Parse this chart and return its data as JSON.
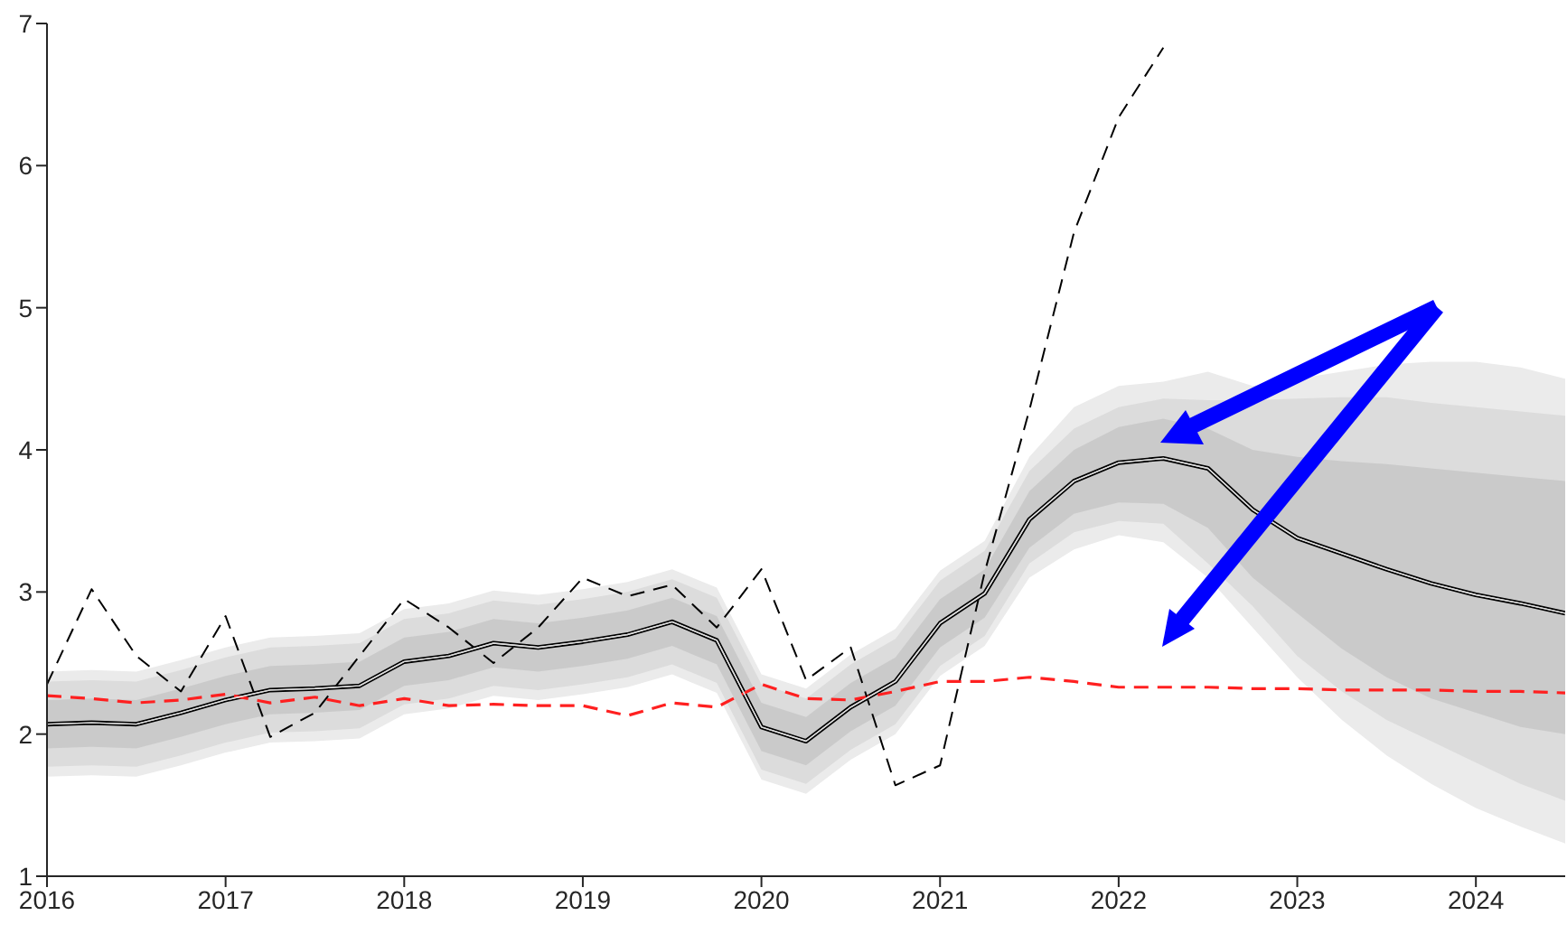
{
  "chart_data": {
    "type": "line",
    "x": [
      2016,
      2016.25,
      2016.5,
      2016.75,
      2017,
      2017.25,
      2017.5,
      2017.75,
      2018,
      2018.25,
      2018.5,
      2018.75,
      2019,
      2019.25,
      2019.5,
      2019.75,
      2020,
      2020.25,
      2020.5,
      2020.75,
      2021,
      2021.25,
      2021.5,
      2021.75,
      2022,
      2022.25,
      2022.5,
      2022.75,
      2023,
      2023.25,
      2023.5,
      2023.75,
      2024,
      2024.25,
      2024.5
    ],
    "series": [
      {
        "color": "#ebebeb",
        "line_style": "solid",
        "values": [
          2.07,
          2.08,
          2.07,
          2.15,
          2.24,
          2.31,
          2.32,
          2.34,
          2.51,
          2.55,
          2.64,
          2.61,
          2.65,
          2.7,
          2.79,
          2.66,
          2.05,
          1.95,
          2.19,
          2.37,
          2.78,
          2.99,
          3.51,
          3.78,
          3.91,
          3.94,
          3.87,
          3.58,
          3.38,
          3.27,
          3.16,
          3.06,
          2.98,
          2.92,
          2.85
        ],
        "upper": [
          2.44,
          2.45,
          2.44,
          2.52,
          2.61,
          2.68,
          2.69,
          2.71,
          2.88,
          2.92,
          3.01,
          2.98,
          3.02,
          3.07,
          3.16,
          3.03,
          2.42,
          2.32,
          2.56,
          2.74,
          3.15,
          3.36,
          3.95,
          4.3,
          4.45,
          4.48,
          4.55,
          4.45,
          4.5,
          4.55,
          4.6,
          4.62,
          4.62,
          4.58,
          4.5
        ],
        "lower": [
          1.7,
          1.71,
          1.7,
          1.78,
          1.87,
          1.94,
          1.95,
          1.97,
          2.14,
          2.18,
          2.27,
          2.24,
          2.28,
          2.33,
          2.42,
          2.29,
          1.68,
          1.58,
          1.82,
          2.0,
          2.41,
          2.62,
          3.1,
          3.3,
          3.4,
          3.35,
          3.1,
          2.75,
          2.4,
          2.1,
          1.85,
          1.65,
          1.48,
          1.35,
          1.23
        ]
      },
      {
        "color": "#dcdcdc",
        "line_style": "solid",
        "values": [
          2.07,
          2.08,
          2.07,
          2.15,
          2.24,
          2.31,
          2.32,
          2.34,
          2.51,
          2.55,
          2.64,
          2.61,
          2.65,
          2.7,
          2.79,
          2.66,
          2.05,
          1.95,
          2.19,
          2.37,
          2.78,
          2.99,
          3.51,
          3.78,
          3.91,
          3.94,
          3.87,
          3.58,
          3.38,
          3.27,
          3.16,
          3.06,
          2.98,
          2.92,
          2.85
        ],
        "upper": [
          2.37,
          2.38,
          2.37,
          2.45,
          2.54,
          2.61,
          2.62,
          2.64,
          2.81,
          2.85,
          2.94,
          2.91,
          2.95,
          3.0,
          3.09,
          2.96,
          2.35,
          2.25,
          2.49,
          2.67,
          3.08,
          3.29,
          3.85,
          4.15,
          4.3,
          4.36,
          4.35,
          4.35,
          4.36,
          4.37,
          4.37,
          4.33,
          4.3,
          4.27,
          4.24
        ],
        "lower": [
          1.77,
          1.78,
          1.77,
          1.85,
          1.94,
          2.01,
          2.02,
          2.04,
          2.21,
          2.25,
          2.34,
          2.31,
          2.35,
          2.4,
          2.49,
          2.36,
          1.75,
          1.65,
          1.89,
          2.07,
          2.48,
          2.69,
          3.2,
          3.42,
          3.5,
          3.48,
          3.2,
          2.9,
          2.55,
          2.3,
          2.1,
          1.95,
          1.8,
          1.65,
          1.53
        ]
      },
      {
        "color": "#000000",
        "line_style": "solid",
        "values": [
          2.07,
          2.08,
          2.07,
          2.15,
          2.24,
          2.31,
          2.32,
          2.34,
          2.51,
          2.55,
          2.64,
          2.61,
          2.65,
          2.7,
          2.79,
          2.66,
          2.05,
          1.95,
          2.19,
          2.37,
          2.78,
          2.99,
          3.51,
          3.78,
          3.91,
          3.94,
          3.87,
          3.58,
          3.38,
          3.27,
          3.16,
          3.06,
          2.98,
          2.92,
          2.85
        ],
        "upper": [
          2.24,
          2.25,
          2.24,
          2.32,
          2.41,
          2.48,
          2.49,
          2.51,
          2.68,
          2.72,
          2.81,
          2.78,
          2.82,
          2.87,
          2.96,
          2.83,
          2.22,
          2.12,
          2.36,
          2.54,
          2.95,
          3.16,
          3.71,
          4.0,
          4.16,
          4.22,
          4.15,
          4.0,
          3.95,
          3.92,
          3.9,
          3.87,
          3.84,
          3.81,
          3.78
        ],
        "lower": [
          1.9,
          1.91,
          1.9,
          1.98,
          2.07,
          2.14,
          2.15,
          2.17,
          2.34,
          2.38,
          2.47,
          2.44,
          2.48,
          2.53,
          2.62,
          2.49,
          1.88,
          1.78,
          2.02,
          2.2,
          2.61,
          2.82,
          3.31,
          3.55,
          3.63,
          3.62,
          3.45,
          3.1,
          2.85,
          2.6,
          2.4,
          2.25,
          2.15,
          2.05,
          2.0
        ]
      },
      {
        "color": "#ff2020",
        "line_style": "dashed",
        "values": [
          2.27,
          2.25,
          2.22,
          2.24,
          2.28,
          2.22,
          2.26,
          2.2,
          2.25,
          2.2,
          2.21,
          2.2,
          2.2,
          2.13,
          2.22,
          2.19,
          2.35,
          2.25,
          2.24,
          2.3,
          2.37,
          2.37,
          2.4,
          2.37,
          2.33,
          2.33,
          2.33,
          2.32,
          2.32,
          2.31,
          2.31,
          2.31,
          2.3,
          2.3,
          2.29
        ]
      },
      {
        "color": "#000000",
        "line_style": "dashed",
        "values": [
          2.35,
          3.02,
          2.55,
          2.3,
          2.83,
          1.98,
          2.15,
          2.55,
          2.95,
          2.75,
          2.5,
          2.75,
          3.1,
          2.97,
          3.05,
          2.75,
          3.16,
          2.38,
          2.61,
          1.64,
          1.78,
          3.14,
          4.28,
          5.53,
          6.34,
          6.83,
          null,
          null,
          null,
          null,
          null,
          null,
          null,
          null,
          null
        ]
      }
    ],
    "xlim": [
      2016,
      2024.5
    ],
    "xticks": [
      2016,
      2017,
      2018,
      2019,
      2020,
      2021,
      2022,
      2023,
      2024
    ],
    "ylim": [
      1,
      7
    ],
    "yticks": [
      1,
      2,
      3,
      4,
      5,
      6,
      7
    ],
    "grid": false,
    "legend": false
  }
}
